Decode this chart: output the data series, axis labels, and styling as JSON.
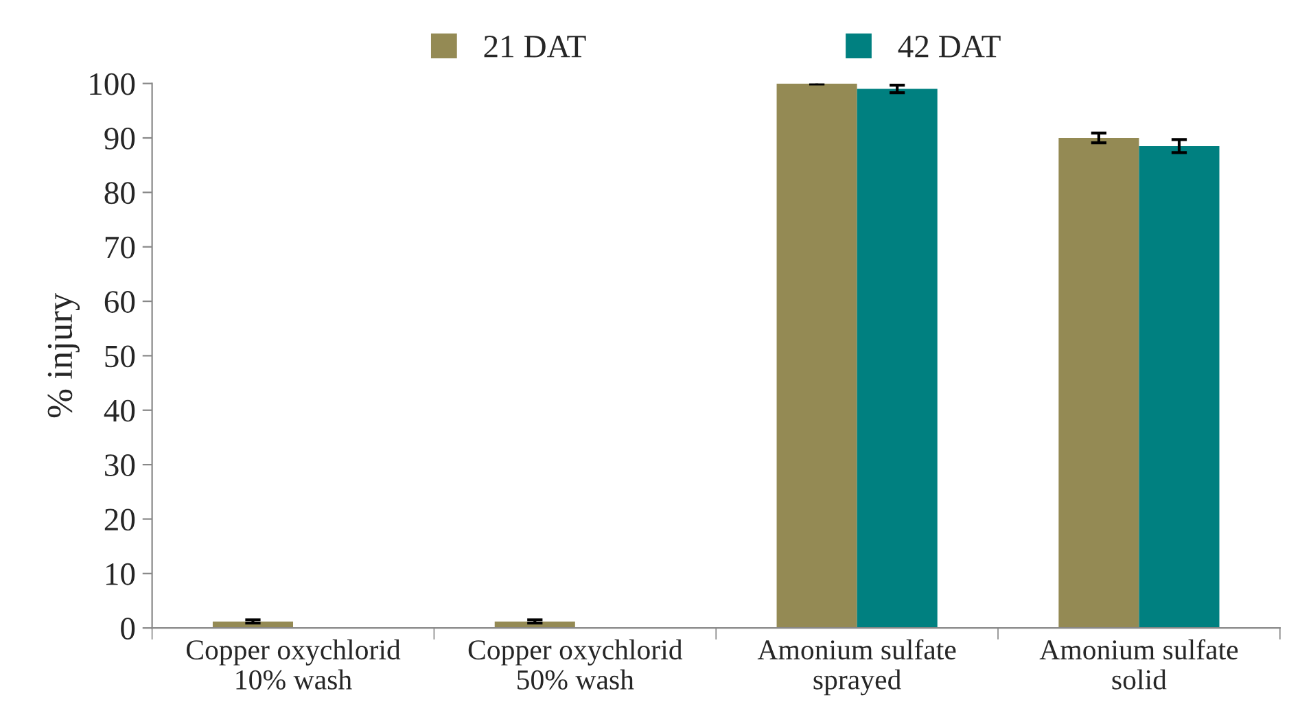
{
  "chart_data": {
    "type": "bar",
    "ylabel": "% injury",
    "categories": [
      "Copper oxychlorid\n10% wash",
      "Copper oxychlorid\n50% wash",
      "Amonium sulfate\nsprayed",
      "Amonium sulfate\nsolid"
    ],
    "series": [
      {
        "name": "21 DAT",
        "color": "#948a54",
        "values": [
          1.2,
          1.2,
          100,
          90
        ],
        "errors": [
          0.3,
          0.3,
          0.1,
          0.9
        ]
      },
      {
        "name": "42 DAT",
        "color": "#008080",
        "values": [
          0,
          0,
          99,
          88.5
        ],
        "errors": [
          null,
          null,
          0.7,
          1.2
        ]
      }
    ],
    "ylim": [
      0,
      100
    ],
    "yticks": [
      0,
      10,
      20,
      30,
      40,
      50,
      60,
      70,
      80,
      90,
      100
    ],
    "grid": false,
    "legend": "top"
  }
}
